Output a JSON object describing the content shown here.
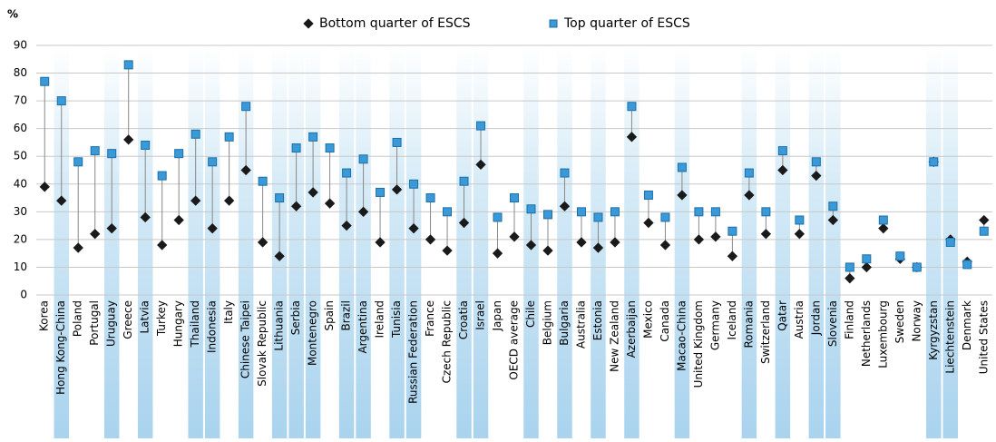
{
  "chart_data": {
    "type": "dot-range",
    "y_label": "%",
    "categories": [
      "Korea",
      "Hong Kong-China",
      "Poland",
      "Portugal",
      "Uruguay",
      "Greece",
      "Latvia",
      "Turkey",
      "Hungary",
      "Thailand",
      "Indonesia",
      "Italy",
      "Chinese Taipei",
      "Slovak Republic",
      "Lithuania",
      "Serbia",
      "Montenegro",
      "Spain",
      "Brazil",
      "Argentina",
      "Ireland",
      "Tunisia",
      "Russian Federation",
      "France",
      "Czech Republic",
      "Croatia",
      "Israel",
      "Japan",
      "OECD average",
      "Chile",
      "Belgium",
      "Bulgaria",
      "Australia",
      "Estonia",
      "New Zealand",
      "Azerbaijan",
      "Mexico",
      "Canada",
      "Macao-China",
      "United Kingdom",
      "Germany",
      "Iceland",
      "Romania",
      "Switzerland",
      "Qatar",
      "Austria",
      "Jordan",
      "Slovenia",
      "Finland",
      "Netherlands",
      "Luxembourg",
      "Sweden",
      "Norway",
      "Kyrgyzstan",
      "Liechtenstein",
      "Denmark",
      "United States"
    ],
    "highlighted": [
      false,
      true,
      false,
      false,
      true,
      false,
      true,
      false,
      false,
      true,
      true,
      false,
      true,
      false,
      true,
      true,
      true,
      false,
      true,
      true,
      false,
      true,
      true,
      false,
      false,
      true,
      true,
      false,
      false,
      true,
      false,
      true,
      false,
      true,
      false,
      true,
      false,
      false,
      true,
      false,
      false,
      false,
      true,
      false,
      true,
      false,
      true,
      true,
      false,
      false,
      false,
      false,
      false,
      true,
      true,
      false,
      false
    ],
    "highlight_color": "#2a93d0",
    "series": [
      {
        "name": "Bottom quarter of ESCS",
        "color": "#1a1a1a",
        "marker": "diamond",
        "values": [
          39,
          34,
          17,
          22,
          24,
          56,
          28,
          18,
          27,
          34,
          24,
          34,
          45,
          19,
          14,
          32,
          37,
          33,
          25,
          30,
          19,
          38,
          24,
          20,
          16,
          26,
          47,
          15,
          21,
          18,
          16,
          32,
          19,
          17,
          19,
          57,
          26,
          18,
          36,
          20,
          21,
          14,
          36,
          22,
          45,
          22,
          43,
          27,
          6,
          10,
          24,
          13,
          10,
          48,
          20,
          12,
          27
        ]
      },
      {
        "name": "Top quarter of ESCS",
        "color": "#3a9ad9",
        "marker": "square",
        "values": [
          77,
          70,
          48,
          52,
          51,
          83,
          54,
          43,
          51,
          58,
          48,
          57,
          68,
          41,
          35,
          53,
          57,
          53,
          44,
          49,
          37,
          55,
          40,
          35,
          30,
          41,
          61,
          28,
          35,
          31,
          29,
          44,
          30,
          28,
          30,
          68,
          36,
          28,
          46,
          30,
          30,
          23,
          44,
          30,
          52,
          27,
          48,
          32,
          10,
          13,
          27,
          14,
          10,
          48,
          19,
          11,
          23
        ]
      }
    ],
    "ylim": [
      0,
      90
    ],
    "yticks": [
      0,
      10,
      20,
      30,
      40,
      50,
      60,
      70,
      80,
      90
    ],
    "grid": true
  }
}
